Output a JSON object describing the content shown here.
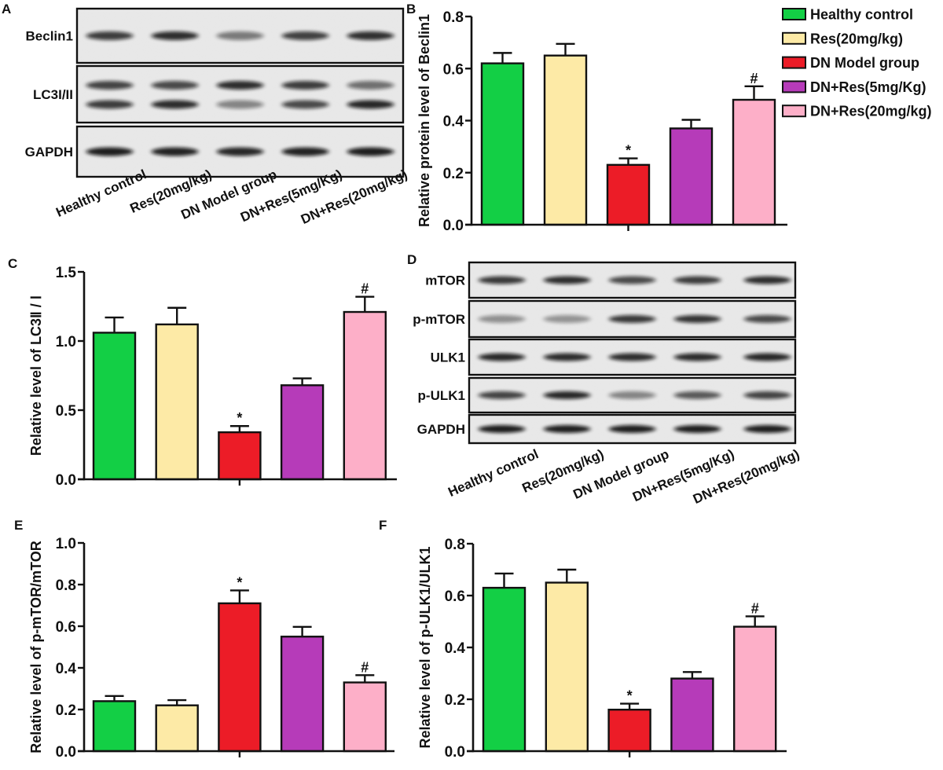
{
  "groups": [
    "Healthy control",
    "Res(20mg/kg)",
    "DN Model group",
    "DN+Res(5mg/Kg)",
    "DN+Res(20mg/kg)"
  ],
  "group_colors": [
    "#13cf45",
    "#fdeaa6",
    "#ec1c27",
    "#b63bb9",
    "#fdafc8"
  ],
  "legend": {
    "items": [
      {
        "label": "Healthy control",
        "color": "#13cf45"
      },
      {
        "label": "Res(20mg/kg)",
        "color": "#fdeaa6"
      },
      {
        "label": "DN Model group",
        "color": "#ec1c27"
      },
      {
        "label": "DN+Res(5mg/Kg)",
        "color": "#b63bb9"
      },
      {
        "label": "DN+Res(20mg/kg)",
        "color": "#fdafc8"
      }
    ]
  },
  "blots": [
    {
      "panel": "A",
      "lane_labels": [
        "Healthy control",
        "Res(20mg/kg)",
        "DN Model group",
        "DN+Res(5mg/Kg)",
        "DN+Res(20mg/kg)"
      ],
      "rows": [
        {
          "label": "Beclin1",
          "bands": [
            [
              0.78,
              0.85,
              0.5,
              0.76,
              0.84
            ]
          ]
        },
        {
          "label": "LC3I/II",
          "bands": [
            [
              0.75,
              0.72,
              0.85,
              0.78,
              0.55
            ],
            [
              0.78,
              0.85,
              0.45,
              0.72,
              0.88
            ]
          ]
        },
        {
          "label": "GAPDH",
          "bands": [
            [
              0.92,
              0.9,
              0.88,
              0.9,
              0.92
            ]
          ]
        }
      ]
    },
    {
      "panel": "D",
      "lane_labels": [
        "Healthy control",
        "Res(20mg/kg)",
        "DN Model group",
        "DN+Res(5mg/Kg)",
        "DN+Res(20mg/kg)"
      ],
      "rows": [
        {
          "label": "mTOR",
          "bands": [
            [
              0.8,
              0.85,
              0.72,
              0.78,
              0.85
            ]
          ]
        },
        {
          "label": "p-mTOR",
          "bands": [
            [
              0.4,
              0.38,
              0.8,
              0.82,
              0.72
            ]
          ]
        },
        {
          "label": "ULK1",
          "bands": [
            [
              0.88,
              0.86,
              0.85,
              0.86,
              0.88
            ]
          ]
        },
        {
          "label": "p-ULK1",
          "bands": [
            [
              0.75,
              0.88,
              0.45,
              0.65,
              0.75
            ]
          ]
        },
        {
          "label": "GAPDH",
          "bands": [
            [
              0.93,
              0.92,
              0.92,
              0.92,
              0.92
            ]
          ]
        }
      ]
    }
  ],
  "chart_data": [
    {
      "panel": "B",
      "type": "bar",
      "title": "",
      "xlabel": "",
      "ylabel": "Relative protein level of Beclin1",
      "categories": [
        "Healthy control",
        "Res(20mg/kg)",
        "DN Model group",
        "DN+Res(5mg/Kg)",
        "DN+Res(20mg/kg)"
      ],
      "values": [
        0.62,
        0.65,
        0.23,
        0.37,
        0.48
      ],
      "errors": [
        0.04,
        0.045,
        0.025,
        0.033,
        0.052
      ],
      "annotations": [
        "",
        "",
        "*",
        "",
        "#"
      ],
      "ylim": [
        0,
        0.8
      ],
      "yticks": [
        0.0,
        0.2,
        0.4,
        0.6,
        0.8
      ],
      "ytick_labels": [
        "0.0",
        "0.2",
        "0.4",
        "0.6",
        "0.8"
      ],
      "grid": false,
      "legend": "right"
    },
    {
      "panel": "C",
      "type": "bar",
      "title": "",
      "xlabel": "",
      "ylabel": "Relative  level of LC3Ⅱ / Ⅰ",
      "categories": [
        "Healthy control",
        "Res(20mg/kg)",
        "DN Model group",
        "DN+Res(5mg/Kg)",
        "DN+Res(20mg/kg)"
      ],
      "values": [
        1.06,
        1.12,
        0.34,
        0.68,
        1.21
      ],
      "errors": [
        0.11,
        0.12,
        0.045,
        0.05,
        0.11
      ],
      "annotations": [
        "",
        "",
        "*",
        "",
        "#"
      ],
      "ylim": [
        0,
        1.5
      ],
      "yticks": [
        0.0,
        0.5,
        1.0,
        1.5
      ],
      "ytick_labels": [
        "0.0",
        "0.5",
        "1.0",
        "1.5"
      ],
      "grid": false
    },
    {
      "panel": "E",
      "type": "bar",
      "title": "",
      "xlabel": "",
      "ylabel": "Relative  level of p-mTOR/mTOR",
      "categories": [
        "Healthy control",
        "Res(20mg/kg)",
        "DN Model group",
        "DN+Res(5mg/Kg)",
        "DN+Res(20mg/kg)"
      ],
      "values": [
        0.24,
        0.22,
        0.71,
        0.55,
        0.33
      ],
      "errors": [
        0.025,
        0.025,
        0.062,
        0.047,
        0.035
      ],
      "annotations": [
        "",
        "",
        "*",
        "",
        "#"
      ],
      "ylim": [
        0,
        1.0
      ],
      "yticks": [
        0.0,
        0.2,
        0.4,
        0.6,
        0.8,
        1.0
      ],
      "ytick_labels": [
        "0.0",
        "0.2",
        "0.4",
        "0.6",
        "0.8",
        "1.0"
      ],
      "grid": false
    },
    {
      "panel": "F",
      "type": "bar",
      "title": "",
      "xlabel": "",
      "ylabel": "Relative  level of p-ULK1/ULK1",
      "categories": [
        "Healthy control",
        "Res(20mg/kg)",
        "DN Model group",
        "DN+Res(5mg/Kg)",
        "DN+Res(20mg/kg)"
      ],
      "values": [
        0.63,
        0.65,
        0.16,
        0.28,
        0.48
      ],
      "errors": [
        0.055,
        0.05,
        0.023,
        0.025,
        0.04
      ],
      "annotations": [
        "",
        "",
        "*",
        "",
        "#"
      ],
      "ylim": [
        0,
        0.8
      ],
      "yticks": [
        0.0,
        0.2,
        0.4,
        0.6,
        0.8
      ],
      "ytick_labels": [
        "0.0",
        "0.2",
        "0.4",
        "0.6",
        "0.8"
      ],
      "grid": false
    }
  ]
}
